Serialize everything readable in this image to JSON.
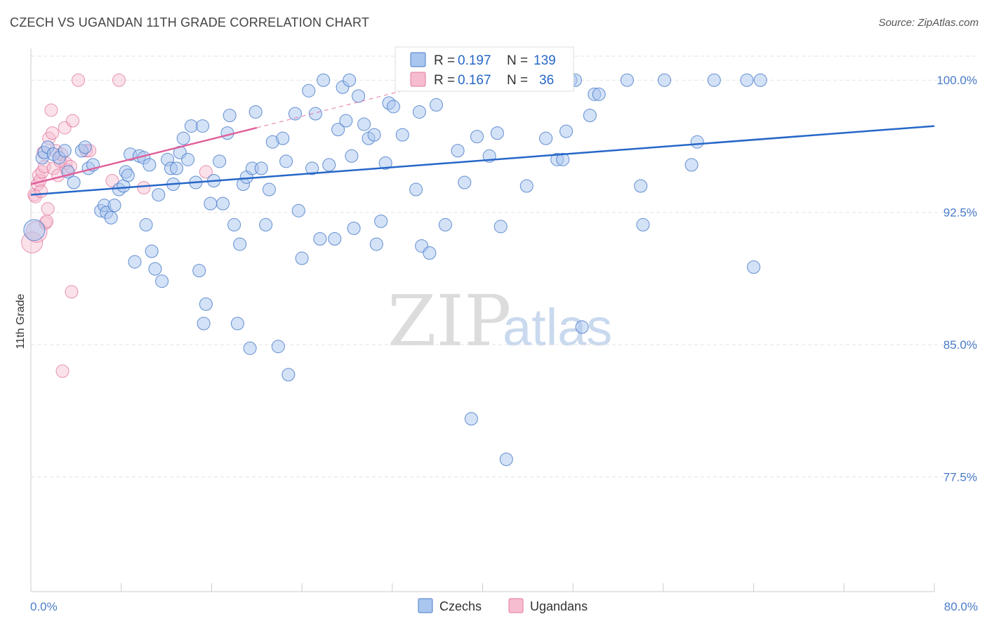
{
  "title": "CZECH VS UGANDAN 11TH GRADE CORRELATION CHART",
  "source": "Source: ZipAtlas.com",
  "watermark": {
    "zip": "ZIP",
    "atlas": "atlas"
  },
  "colors": {
    "czech_fill": "#a9c6ef",
    "czech_stroke": "#4a7cc9",
    "czech_line": "#2667c8",
    "ugandan_fill": "#f6bcd0",
    "ugandan_stroke": "#e07aa0",
    "ugandan_line": "#e0609a",
    "tick_text": "#4a7cc9",
    "grid": "#e3e3e3"
  },
  "legend": {
    "czech": {
      "r_label": "R =",
      "r_value": "0.197",
      "n_label": "N =",
      "n_value": "139"
    },
    "ugandan": {
      "r_label": "R =",
      "r_value": "0.167",
      "n_label": "N =",
      "n_value": "36"
    }
  },
  "bottom_legend": {
    "czech": "Czechs",
    "ugandan": "Ugandans"
  },
  "chart_data": {
    "type": "scatter",
    "title": "CZECH VS UGANDAN 11TH GRADE CORRELATION CHART",
    "xlabel": "",
    "ylabel": "11th Grade",
    "xlim": [
      0,
      80
    ],
    "ylim": [
      71.0,
      101.8
    ],
    "x_tick_labels": [
      "0.0%",
      "80.0%"
    ],
    "y_ticks": [
      77.5,
      85.0,
      92.5,
      100.0
    ],
    "y_tick_labels": [
      "77.5%",
      "85.0%",
      "92.5%",
      "100.0%"
    ],
    "grid": true,
    "series": [
      {
        "name": "Czechs",
        "r": 0.197,
        "n": 139,
        "trend": {
          "x0": 0,
          "y0": 93.5,
          "x1": 80,
          "y1": 97.4,
          "dashed_extension": false
        },
        "points": [
          [
            0.3,
            91.5
          ],
          [
            1.0,
            95.6
          ],
          [
            1.2,
            95.9
          ],
          [
            1.5,
            96.2
          ],
          [
            2.0,
            95.8
          ],
          [
            2.5,
            95.6
          ],
          [
            3.0,
            96.0
          ],
          [
            3.3,
            94.8
          ],
          [
            3.8,
            94.2
          ],
          [
            4.5,
            96.0
          ],
          [
            4.8,
            96.2
          ],
          [
            5.1,
            95.0
          ],
          [
            5.5,
            95.2
          ],
          [
            6.2,
            92.6
          ],
          [
            6.5,
            92.9
          ],
          [
            6.7,
            92.5
          ],
          [
            7.1,
            92.2
          ],
          [
            7.4,
            92.9
          ],
          [
            7.8,
            93.8
          ],
          [
            8.2,
            94.0
          ],
          [
            8.4,
            94.8
          ],
          [
            8.6,
            94.6
          ],
          [
            8.8,
            95.8
          ],
          [
            9.2,
            89.7
          ],
          [
            9.6,
            95.7
          ],
          [
            10.0,
            95.6
          ],
          [
            10.2,
            91.8
          ],
          [
            10.5,
            95.2
          ],
          [
            10.7,
            90.3
          ],
          [
            11.0,
            89.3
          ],
          [
            11.3,
            93.5
          ],
          [
            11.6,
            88.6
          ],
          [
            12.1,
            95.5
          ],
          [
            12.4,
            95.0
          ],
          [
            12.6,
            94.1
          ],
          [
            12.9,
            95.0
          ],
          [
            13.2,
            95.9
          ],
          [
            13.5,
            96.7
          ],
          [
            13.9,
            95.5
          ],
          [
            14.2,
            97.4
          ],
          [
            14.6,
            94.2
          ],
          [
            14.9,
            89.2
          ],
          [
            15.2,
            97.4
          ],
          [
            15.5,
            87.3
          ],
          [
            15.3,
            86.2
          ],
          [
            15.9,
            93.0
          ],
          [
            16.2,
            94.3
          ],
          [
            16.7,
            95.4
          ],
          [
            17.0,
            93.0
          ],
          [
            17.4,
            97.0
          ],
          [
            17.6,
            98.0
          ],
          [
            18.0,
            91.8
          ],
          [
            18.3,
            86.2
          ],
          [
            18.5,
            90.7
          ],
          [
            18.8,
            94.1
          ],
          [
            19.1,
            94.5
          ],
          [
            19.4,
            84.8
          ],
          [
            19.6,
            95.0
          ],
          [
            19.9,
            98.2
          ],
          [
            20.4,
            95.0
          ],
          [
            20.8,
            91.8
          ],
          [
            21.1,
            93.8
          ],
          [
            21.4,
            96.5
          ],
          [
            21.9,
            84.9
          ],
          [
            22.3,
            96.7
          ],
          [
            22.6,
            95.4
          ],
          [
            22.8,
            83.3
          ],
          [
            23.4,
            98.1
          ],
          [
            23.7,
            92.6
          ],
          [
            24.0,
            89.9
          ],
          [
            24.6,
            99.4
          ],
          [
            24.9,
            95.0
          ],
          [
            25.2,
            98.1
          ],
          [
            25.6,
            91.0
          ],
          [
            25.9,
            100.0
          ],
          [
            26.4,
            95.2
          ],
          [
            26.9,
            91.0
          ],
          [
            27.2,
            97.2
          ],
          [
            27.6,
            99.6
          ],
          [
            27.9,
            97.7
          ],
          [
            28.2,
            100.0
          ],
          [
            28.4,
            95.7
          ],
          [
            28.6,
            91.6
          ],
          [
            29.0,
            99.1
          ],
          [
            29.5,
            97.5
          ],
          [
            29.9,
            96.7
          ],
          [
            30.4,
            96.9
          ],
          [
            30.6,
            90.7
          ],
          [
            31.0,
            92.0
          ],
          [
            31.4,
            95.3
          ],
          [
            31.7,
            98.7
          ],
          [
            32.1,
            98.5
          ],
          [
            32.9,
            96.9
          ],
          [
            33.6,
            100.0
          ],
          [
            34.1,
            93.8
          ],
          [
            34.4,
            98.2
          ],
          [
            34.6,
            90.6
          ],
          [
            35.3,
            90.2
          ],
          [
            35.9,
            98.6
          ],
          [
            36.4,
            100.0
          ],
          [
            36.7,
            91.8
          ],
          [
            37.4,
            100.0
          ],
          [
            37.8,
            96.0
          ],
          [
            38.4,
            94.2
          ],
          [
            39.0,
            80.8
          ],
          [
            39.5,
            96.8
          ],
          [
            40.0,
            100.0
          ],
          [
            40.6,
            95.7
          ],
          [
            41.3,
            97.0
          ],
          [
            41.6,
            91.7
          ],
          [
            42.1,
            78.5
          ],
          [
            42.7,
            100.0
          ],
          [
            43.1,
            100.0
          ],
          [
            43.9,
            94.0
          ],
          [
            44.8,
            100.0
          ],
          [
            45.6,
            96.7
          ],
          [
            46.1,
            100.0
          ],
          [
            46.6,
            95.5
          ],
          [
            47.1,
            95.5
          ],
          [
            47.4,
            97.1
          ],
          [
            47.8,
            100.0
          ],
          [
            48.2,
            100.0
          ],
          [
            48.8,
            86.0
          ],
          [
            49.5,
            98.0
          ],
          [
            49.9,
            99.2
          ],
          [
            50.3,
            99.2
          ],
          [
            52.8,
            100.0
          ],
          [
            54.0,
            94.0
          ],
          [
            54.2,
            91.8
          ],
          [
            56.1,
            100.0
          ],
          [
            58.5,
            95.2
          ],
          [
            59.0,
            96.5
          ],
          [
            60.5,
            100.0
          ],
          [
            63.4,
            100.0
          ],
          [
            64.0,
            89.4
          ],
          [
            64.6,
            100.0
          ]
        ]
      },
      {
        "name": "Ugandans",
        "r": 0.167,
        "n": 36,
        "trend": {
          "x0": 0,
          "y0": 94.1,
          "x1": 20,
          "y1": 97.3,
          "dashed_to_x": 36,
          "dashed_to_y": 99.9
        },
        "points": [
          [
            0.1,
            90.8
          ],
          [
            0.3,
            93.5
          ],
          [
            0.4,
            93.4
          ],
          [
            0.5,
            91.4
          ],
          [
            0.6,
            94.1
          ],
          [
            0.7,
            94.6
          ],
          [
            0.8,
            94.3
          ],
          [
            0.9,
            93.7
          ],
          [
            1.0,
            94.8
          ],
          [
            1.1,
            95.9
          ],
          [
            1.2,
            95.1
          ],
          [
            1.3,
            91.9
          ],
          [
            1.4,
            92.0
          ],
          [
            1.5,
            92.7
          ],
          [
            1.6,
            96.7
          ],
          [
            1.8,
            98.3
          ],
          [
            1.9,
            97.0
          ],
          [
            2.0,
            95.0
          ],
          [
            2.2,
            96.0
          ],
          [
            2.4,
            94.6
          ],
          [
            2.6,
            95.4
          ],
          [
            2.7,
            95.8
          ],
          [
            2.8,
            83.5
          ],
          [
            3.0,
            97.3
          ],
          [
            3.1,
            95.3
          ],
          [
            3.2,
            94.9
          ],
          [
            3.5,
            95.1
          ],
          [
            3.6,
            88.0
          ],
          [
            3.7,
            97.7
          ],
          [
            4.2,
            100.0
          ],
          [
            4.9,
            96.0
          ],
          [
            5.2,
            96.0
          ],
          [
            7.2,
            94.3
          ],
          [
            7.8,
            100.0
          ],
          [
            10.0,
            93.9
          ],
          [
            15.5,
            94.8
          ]
        ]
      }
    ]
  }
}
